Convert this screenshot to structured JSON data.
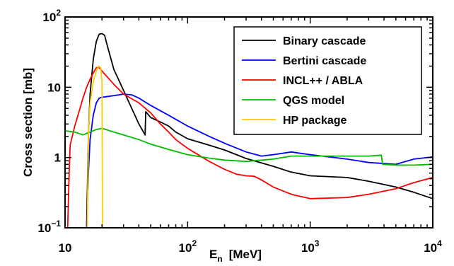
{
  "chart_data": {
    "type": "line",
    "title": "",
    "xlabel": {
      "main": "E",
      "sub": "n",
      "unit": "[MeV]"
    },
    "ylabel": "Cross section  [mb]",
    "xscale": "log",
    "yscale": "log",
    "xlim": [
      10,
      10000
    ],
    "ylim": [
      0.1,
      100
    ],
    "x_ticks": [
      {
        "value": 10,
        "base": "10",
        "exp": ""
      },
      {
        "value": 100,
        "base": "10",
        "exp": "2"
      },
      {
        "value": 1000,
        "base": "10",
        "exp": "3"
      },
      {
        "value": 10000,
        "base": "10",
        "exp": "4"
      }
    ],
    "y_ticks": [
      {
        "value": 0.1,
        "base": "10",
        "exp": "−1"
      },
      {
        "value": 1,
        "base": "1",
        "exp": ""
      },
      {
        "value": 10,
        "base": "10",
        "exp": ""
      },
      {
        "value": 100,
        "base": "10",
        "exp": "2"
      }
    ],
    "legend_position": "top-right",
    "grid": false,
    "series": [
      {
        "name": "Binary cascade",
        "color": "#000000",
        "points": [
          [
            15,
            0.1
          ],
          [
            15.5,
            2
          ],
          [
            16,
            8
          ],
          [
            17,
            25
          ],
          [
            18,
            45
          ],
          [
            19,
            57
          ],
          [
            20,
            58
          ],
          [
            21,
            55
          ],
          [
            22,
            40
          ],
          [
            25,
            18
          ],
          [
            30,
            9
          ],
          [
            35,
            5
          ],
          [
            40,
            3
          ],
          [
            45,
            2.1
          ],
          [
            45.5,
            4.5
          ],
          [
            50,
            3.7
          ],
          [
            60,
            3.2
          ],
          [
            70,
            2.8
          ],
          [
            80,
            2.3
          ],
          [
            100,
            1.85
          ],
          [
            150,
            1.5
          ],
          [
            200,
            1.28
          ],
          [
            300,
            0.97
          ],
          [
            500,
            0.75
          ],
          [
            700,
            0.62
          ],
          [
            1000,
            0.55
          ],
          [
            2000,
            0.52
          ],
          [
            3000,
            0.46
          ],
          [
            5000,
            0.38
          ],
          [
            7000,
            0.32
          ],
          [
            10000,
            0.26
          ]
        ]
      },
      {
        "name": "Bertini cascade",
        "color": "#0000ff",
        "points": [
          [
            15,
            0.1
          ],
          [
            15.5,
            0.6
          ],
          [
            16,
            1.8
          ],
          [
            17,
            4
          ],
          [
            18,
            6
          ],
          [
            19,
            7
          ],
          [
            20,
            7.2
          ],
          [
            25,
            7.6
          ],
          [
            30,
            8
          ],
          [
            35,
            7.8
          ],
          [
            40,
            7
          ],
          [
            50,
            5.5
          ],
          [
            70,
            4
          ],
          [
            100,
            2.8
          ],
          [
            150,
            2
          ],
          [
            200,
            1.6
          ],
          [
            300,
            1.2
          ],
          [
            400,
            1.05
          ],
          [
            500,
            1.1
          ],
          [
            700,
            1.2
          ],
          [
            1000,
            1.1
          ],
          [
            2000,
            0.95
          ],
          [
            3000,
            0.85
          ],
          [
            5000,
            0.8
          ],
          [
            7000,
            0.95
          ],
          [
            10000,
            1.02
          ]
        ]
      },
      {
        "name": "INCL++ / ABLA",
        "color": "#ff0000",
        "points": [
          [
            10.5,
            0.1
          ],
          [
            10.8,
            0.6
          ],
          [
            11,
            1.5
          ],
          [
            12,
            2.8
          ],
          [
            13,
            4.5
          ],
          [
            14,
            7
          ],
          [
            15,
            10
          ],
          [
            16,
            13
          ],
          [
            17,
            16
          ],
          [
            18,
            19
          ],
          [
            19,
            19
          ],
          [
            20,
            17
          ],
          [
            25,
            11
          ],
          [
            30,
            8
          ],
          [
            40,
            6
          ],
          [
            50,
            4.3
          ],
          [
            60,
            3
          ],
          [
            70,
            2.3
          ],
          [
            80,
            1.8
          ],
          [
            100,
            1.35
          ],
          [
            150,
            0.88
          ],
          [
            200,
            0.68
          ],
          [
            250,
            0.58
          ],
          [
            300,
            0.55
          ],
          [
            350,
            0.54
          ],
          [
            400,
            0.48
          ],
          [
            500,
            0.38
          ],
          [
            700,
            0.3
          ],
          [
            1000,
            0.26
          ],
          [
            2000,
            0.27
          ],
          [
            3000,
            0.3
          ],
          [
            5000,
            0.36
          ],
          [
            7000,
            0.44
          ],
          [
            10000,
            0.52
          ]
        ]
      },
      {
        "name": "QGS model",
        "color": "#00bb00",
        "points": [
          [
            10,
            2.4
          ],
          [
            12,
            2.3
          ],
          [
            14,
            2.1
          ],
          [
            16,
            2.3
          ],
          [
            18,
            2.5
          ],
          [
            20,
            2.6
          ],
          [
            25,
            2.3
          ],
          [
            30,
            2.1
          ],
          [
            40,
            1.8
          ],
          [
            50,
            1.55
          ],
          [
            70,
            1.3
          ],
          [
            100,
            1.1
          ],
          [
            150,
            0.98
          ],
          [
            200,
            0.92
          ],
          [
            300,
            0.88
          ],
          [
            500,
            0.95
          ],
          [
            700,
            1.05
          ],
          [
            1000,
            1.05
          ],
          [
            2000,
            1.05
          ],
          [
            3000,
            1.05
          ],
          [
            3800,
            1.08
          ],
          [
            3900,
            0.8
          ],
          [
            5000,
            0.78
          ],
          [
            7000,
            0.78
          ],
          [
            10000,
            0.8
          ]
        ]
      },
      {
        "name": "HP package",
        "color": "#ffcc00",
        "points": [
          [
            15.2,
            0.1
          ],
          [
            15.5,
            2
          ],
          [
            16,
            6
          ],
          [
            17,
            12
          ],
          [
            18,
            17
          ],
          [
            18.8,
            20
          ],
          [
            19.5,
            19
          ],
          [
            20,
            12
          ],
          [
            20.2,
            0.1
          ]
        ]
      }
    ]
  }
}
